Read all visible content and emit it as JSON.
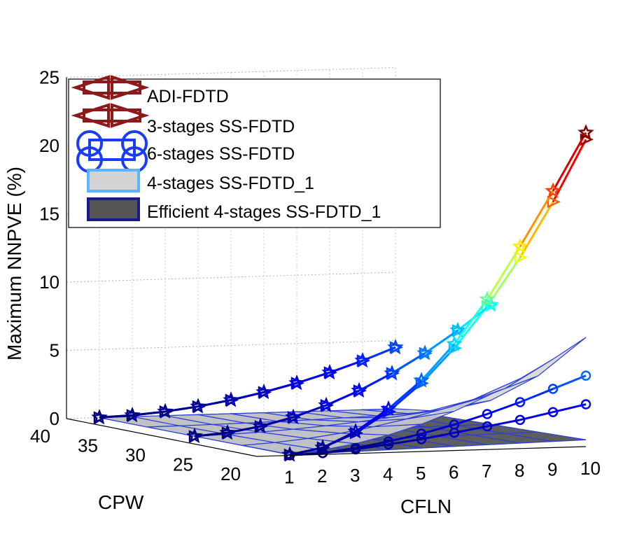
{
  "chart_data": {
    "type": "3d-line-surface",
    "title": "",
    "zlabel": "Maximum NNPVE (%)",
    "xlabel": "CPW",
    "ylabel": "CFLN",
    "zlim": [
      0,
      25
    ],
    "z_ticks": [
      "0",
      "5",
      "10",
      "15",
      "20",
      "25"
    ],
    "cpw_ticks": [
      "40",
      "35",
      "30",
      "25",
      "20"
    ],
    "cfln_ticks": [
      "1",
      "2",
      "3",
      "4",
      "5",
      "6",
      "7",
      "8",
      "9",
      "10"
    ],
    "cpw": [
      40,
      35,
      30,
      25,
      20
    ],
    "cfln": [
      1,
      2,
      3,
      4,
      5,
      6,
      7,
      8,
      9,
      10
    ],
    "legend": [
      "ADI-FDTD",
      "3-stages SS-FDTD",
      "6-stages SS-FDTD",
      "4-stages SS-FDTD_1",
      "Efficient 4-stages SS-FDTD_1"
    ],
    "colors": {
      "high": "#8b0000",
      "mid": "#f6e71c",
      "low": "#00008b",
      "legend_adi": "#8b1a1a",
      "legend_six": "#1a3cff",
      "surface_light": "#d3d3d3",
      "surface_dark": "#555555"
    },
    "series": [
      {
        "name": "ADI-FDTD",
        "marker": "triangle",
        "rows": [
          {
            "cpw": 40,
            "values": [
              0.01,
              0.1,
              0.3,
              0.6,
              1.0,
              1.5,
              2.1,
              2.8,
              3.6,
              4.5
            ]
          },
          {
            "cpw": 30,
            "values": [
              0.02,
              0.2,
              0.6,
              1.2,
              2.0,
              3.0,
              4.2,
              5.6,
              7.2,
              9.0
            ]
          },
          {
            "cpw": 20,
            "values": [
              0.05,
              0.5,
              1.5,
              3.0,
              5.0,
              7.5,
              10.5,
              14.0,
              18.0,
              22.5
            ]
          }
        ]
      },
      {
        "name": "3-stages SS-FDTD",
        "marker": "star",
        "rows": [
          {
            "cpw": 40,
            "values": [
              0.01,
              0.1,
              0.3,
              0.6,
              1.0,
              1.5,
              2.1,
              2.8,
              3.6,
              4.5
            ]
          },
          {
            "cpw": 30,
            "values": [
              0.02,
              0.2,
              0.6,
              1.2,
              2.0,
              3.0,
              4.2,
              5.6,
              7.2,
              9.0
            ]
          },
          {
            "cpw": 20,
            "values": [
              0.05,
              0.5,
              1.6,
              3.2,
              5.2,
              7.8,
              11.0,
              14.8,
              18.8,
              23.0
            ]
          }
        ]
      },
      {
        "name": "6-stages SS-FDTD",
        "marker": "circle",
        "rows": [
          {
            "cpw": 20,
            "values": [
              0.02,
              0.1,
              0.3,
              0.6,
              0.9,
              1.3,
              1.7,
              2.1,
              2.6,
              3.1
            ]
          },
          {
            "cpw": 20,
            "values": [
              0.01,
              0.1,
              0.4,
              0.8,
              1.3,
              1.9,
              2.6,
              3.4,
              4.3,
              5.2
            ]
          }
        ]
      },
      {
        "name": "4-stages SS-FDTD_1",
        "marker": "none",
        "surface": "light",
        "note": "surface spanning CPW 20-40, CFLN 1-10, max ~8 at CPW 20, CFLN 10"
      },
      {
        "name": "Efficient 4-stages SS-FDTD_1",
        "marker": "none",
        "surface": "dark",
        "note": "near-zero surface, max ~0.5"
      }
    ]
  }
}
